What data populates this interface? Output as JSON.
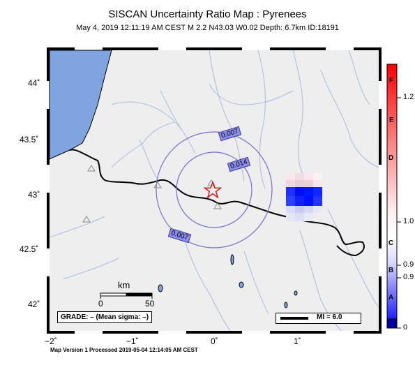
{
  "title": "SISCAN Uncertainty Ratio Map : Pyrenees",
  "subtitle": "May  4, 2019 12:11:19 AM CEST   M 2.2   N43.03 W0.02   Depth: 6.7km   ID:18191",
  "footer": "Map Version 1 Processed 2019-05-04 12:14:05 AM CEST",
  "lat_ticks": [
    "44˚",
    "43.5˚",
    "43˚",
    "42.5˚",
    "42˚"
  ],
  "lon_ticks": [
    "−2˚",
    "−1˚",
    "0˚",
    "1˚"
  ],
  "scale_bar": {
    "unit": "km",
    "min": "0",
    "max": "50"
  },
  "grade_box": "GRADE: – (Mean sigma: –)",
  "mi_legend": "MI = 6.0",
  "contours": [
    "0.007",
    "0.014",
    "0.007"
  ],
  "colorbar": {
    "values": [
      "1.2",
      "1.0",
      "0.9",
      "0.9",
      "0"
    ],
    "letters": [
      "F",
      "E",
      "D",
      "C",
      "B",
      "A"
    ],
    "colors": {
      "high": "#ff0000",
      "mid": "#ffffff",
      "low": "#0000ff",
      "bottom": "#0000a0"
    }
  },
  "epicenter": {
    "lat": 43.03,
    "lon": -0.02,
    "marker": "star"
  },
  "colors": {
    "land": "#eeeeee",
    "sea": "#80a4e0",
    "rivers": "#a4bde0",
    "contours": "#7070d0"
  }
}
